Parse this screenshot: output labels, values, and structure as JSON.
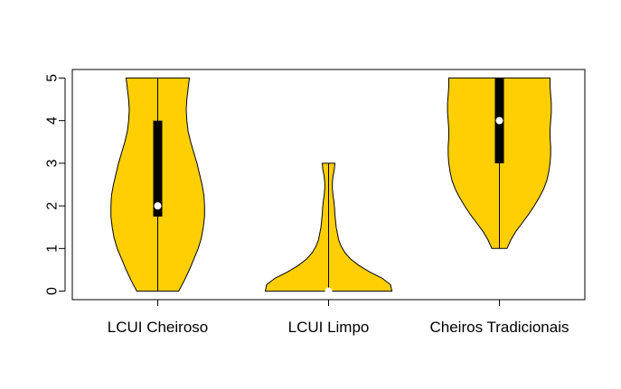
{
  "chart_data": {
    "type": "violin",
    "title": "",
    "xlabel": "",
    "ylabel": "",
    "ylim": [
      -0.2,
      5.2
    ],
    "yticks": [
      0,
      1,
      2,
      3,
      4,
      5
    ],
    "grid": false,
    "legend": "none",
    "violin_color": "#FFCF03",
    "categories": [
      "LCUI Cheiroso",
      "LCUI Limpo",
      "Cheiros Tradicionais"
    ],
    "violins": [
      {
        "category": "LCUI Cheiroso",
        "min": 0,
        "max": 5,
        "q1": 1.75,
        "median": 2,
        "q3": 4,
        "density": [
          [
            0,
            0.33
          ],
          [
            0.25,
            0.42
          ],
          [
            0.5,
            0.5
          ],
          [
            0.75,
            0.57
          ],
          [
            1,
            0.64
          ],
          [
            1.25,
            0.69
          ],
          [
            1.5,
            0.72
          ],
          [
            1.75,
            0.74
          ],
          [
            2,
            0.74
          ],
          [
            2.25,
            0.73
          ],
          [
            2.5,
            0.7
          ],
          [
            2.75,
            0.66
          ],
          [
            3,
            0.62
          ],
          [
            3.25,
            0.57
          ],
          [
            3.5,
            0.52
          ],
          [
            3.75,
            0.48
          ],
          [
            4,
            0.46
          ],
          [
            4.25,
            0.45
          ],
          [
            4.5,
            0.46
          ],
          [
            4.75,
            0.48
          ],
          [
            5,
            0.5
          ]
        ]
      },
      {
        "category": "LCUI Limpo",
        "min": 0,
        "max": 3,
        "q1": 0,
        "median": 0,
        "q3": 0,
        "density": [
          [
            0,
            1.0
          ],
          [
            0.15,
            0.98
          ],
          [
            0.3,
            0.85
          ],
          [
            0.45,
            0.65
          ],
          [
            0.6,
            0.48
          ],
          [
            0.75,
            0.35
          ],
          [
            0.9,
            0.26
          ],
          [
            1.05,
            0.2
          ],
          [
            1.2,
            0.16
          ],
          [
            1.35,
            0.14
          ],
          [
            1.5,
            0.12
          ],
          [
            1.65,
            0.11
          ],
          [
            1.8,
            0.1
          ],
          [
            1.95,
            0.095
          ],
          [
            2.1,
            0.085
          ],
          [
            2.25,
            0.07
          ],
          [
            2.4,
            0.06
          ],
          [
            2.55,
            0.06
          ],
          [
            2.7,
            0.07
          ],
          [
            2.85,
            0.09
          ],
          [
            3,
            0.1
          ]
        ]
      },
      {
        "category": "Cheiros Tradicionais",
        "min": 1,
        "max": 5,
        "q1": 3,
        "median": 4,
        "q3": 5,
        "density": [
          [
            1,
            0.12
          ],
          [
            1.2,
            0.18
          ],
          [
            1.4,
            0.26
          ],
          [
            1.6,
            0.36
          ],
          [
            1.8,
            0.46
          ],
          [
            2,
            0.55
          ],
          [
            2.2,
            0.63
          ],
          [
            2.4,
            0.7
          ],
          [
            2.6,
            0.75
          ],
          [
            2.8,
            0.78
          ],
          [
            3,
            0.8
          ],
          [
            3.2,
            0.81
          ],
          [
            3.4,
            0.81
          ],
          [
            3.6,
            0.8
          ],
          [
            3.8,
            0.8
          ],
          [
            4,
            0.81
          ],
          [
            4.2,
            0.82
          ],
          [
            4.4,
            0.82
          ],
          [
            4.6,
            0.81
          ],
          [
            4.8,
            0.8
          ],
          [
            5,
            0.8
          ]
        ]
      }
    ]
  }
}
